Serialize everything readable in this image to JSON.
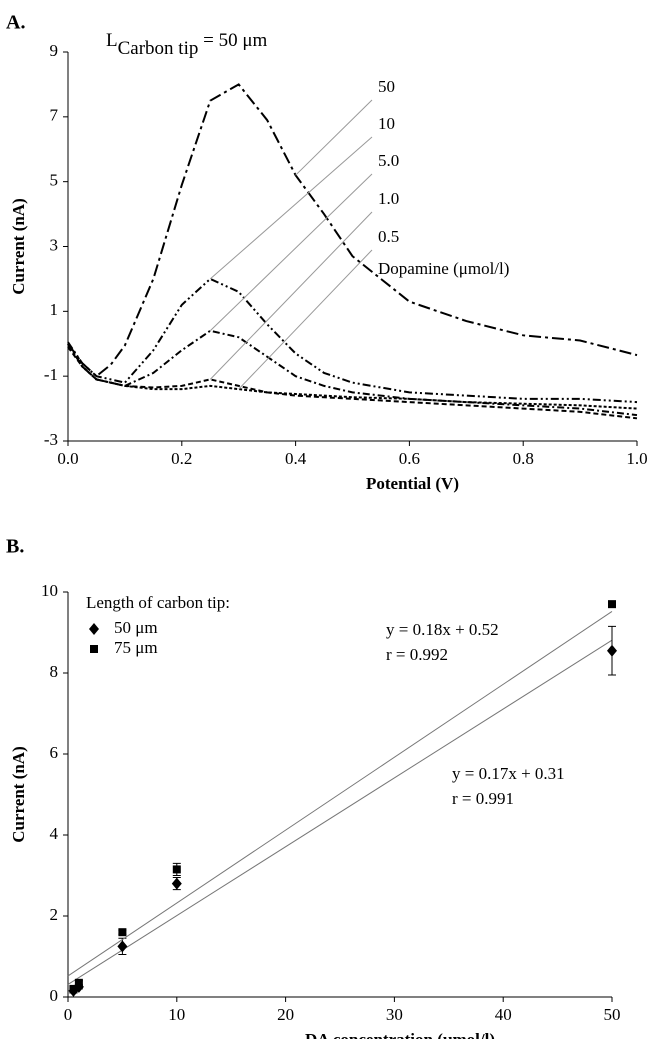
{
  "chart_data": [
    {
      "type": "line",
      "label": "A.",
      "annotation": {
        "main": "L",
        "sub": "Carbon tip",
        "rest": " = 50 μm"
      },
      "x_label": "Potential (V)",
      "y_label": "Current (nA)",
      "series_caption": "Dopamine (μmol/l)",
      "x": [
        0,
        0.025,
        0.05,
        0.075,
        0.1,
        0.15,
        0.2,
        0.25,
        0.3,
        0.35,
        0.4,
        0.45,
        0.5,
        0.6,
        0.7,
        0.8,
        0.9,
        1.0
      ],
      "series": [
        {
          "name": "50",
          "color": "#000",
          "values": [
            0,
            -0.6,
            -1.0,
            -0.65,
            -0.05,
            2.0,
            4.9,
            7.5,
            8.0,
            6.9,
            5.2,
            4.0,
            2.7,
            1.3,
            0.7,
            0.26,
            0.1,
            -0.35
          ]
        },
        {
          "name": "10",
          "color": "#000",
          "values": [
            0.05,
            -0.6,
            -1.0,
            -1.1,
            -1.2,
            -0.2,
            1.2,
            2.0,
            1.6,
            0.6,
            -0.3,
            -0.9,
            -1.2,
            -1.5,
            -1.6,
            -1.7,
            -1.7,
            -1.8
          ]
        },
        {
          "name": "5.0",
          "color": "#000",
          "values": [
            0,
            -0.7,
            -1.1,
            -1.2,
            -1.3,
            -0.9,
            -0.2,
            0.4,
            0.2,
            -0.4,
            -1.0,
            -1.3,
            -1.5,
            -1.7,
            -1.8,
            -1.9,
            -2.0,
            -2.2
          ]
        },
        {
          "name": "1.0",
          "color": "#000",
          "values": [
            -0.1,
            -0.7,
            -1.1,
            -1.2,
            -1.3,
            -1.35,
            -1.3,
            -1.1,
            -1.3,
            -1.5,
            -1.6,
            -1.65,
            -1.7,
            -1.8,
            -1.9,
            -2.0,
            -2.1,
            -2.3
          ]
        },
        {
          "name": "0.5",
          "color": "#000",
          "values": [
            0,
            -0.7,
            -1.1,
            -1.2,
            -1.3,
            -1.4,
            -1.4,
            -1.3,
            -1.4,
            -1.5,
            -1.55,
            -1.6,
            -1.65,
            -1.7,
            -1.8,
            -1.85,
            -1.9,
            -2.0
          ]
        }
      ],
      "xlim": [
        0,
        1.0
      ],
      "xticks": [
        {
          "value": 0,
          "label": "0.0"
        },
        0.2,
        0.4,
        0.6,
        0.8,
        {
          "value": 1.0,
          "label": "1.0"
        }
      ],
      "ylim": [
        -3,
        9
      ],
      "yticks": [
        9,
        7,
        5,
        3,
        1,
        -1,
        -3
      ]
    },
    {
      "type": "scatter",
      "label": "B.",
      "x_label": "DA concentration (μmol/l)",
      "y_label": "Current (nA)",
      "legend_title": "Length of carbon tip:",
      "series": [
        {
          "name": "50 μm",
          "color": "#000",
          "marker": "diamond",
          "x": [
            0.5,
            1,
            5,
            10,
            50
          ],
          "values": [
            0.15,
            0.25,
            1.25,
            2.8,
            8.55
          ],
          "errors": [
            0.05,
            0.05,
            0.2,
            0.15,
            0.6
          ],
          "fit": {
            "slope": 0.17,
            "intercept": 0.31,
            "equation": "y = 0.17x + 0.31",
            "r": "r = 0.991"
          }
        },
        {
          "name": "75 μm",
          "color": "#000",
          "marker": "square",
          "x": [
            0.5,
            1,
            5,
            10,
            50
          ],
          "values": [
            0.2,
            0.35,
            1.6,
            3.15,
            9.7
          ],
          "errors": [
            0.05,
            0.05,
            0.05,
            0.15,
            0.05
          ],
          "fit": {
            "slope": 0.18,
            "intercept": 0.52,
            "equation": "y = 0.18x + 0.52",
            "r": "r = 0.992"
          }
        }
      ],
      "xlim": [
        0,
        50
      ],
      "xticks": [
        0,
        10,
        20,
        30,
        40,
        50
      ],
      "ylim": [
        0,
        10
      ],
      "yticks": [
        0,
        2,
        4,
        6,
        8,
        10
      ]
    }
  ]
}
